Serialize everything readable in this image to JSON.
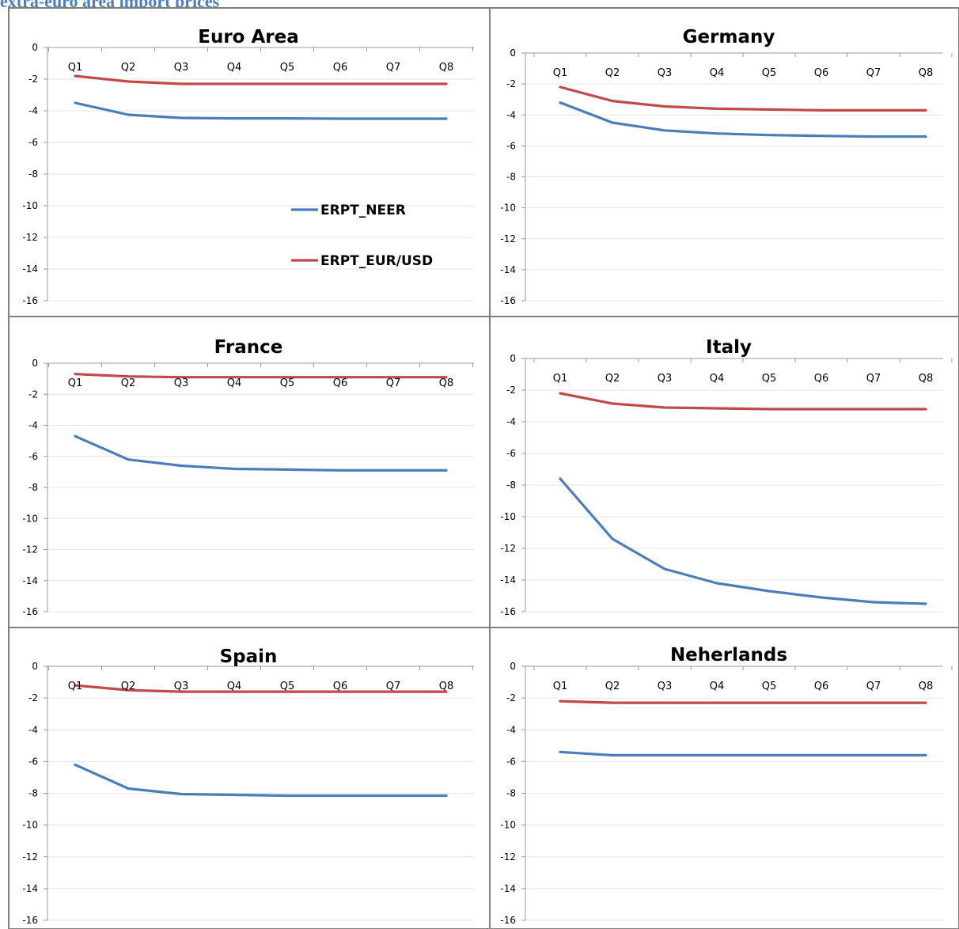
{
  "header": {
    "text": "extra-euro area import prices"
  },
  "legend": {
    "labels": [
      "ERPT_NEER",
      "ERPT_EUR/USD"
    ]
  },
  "colors": {
    "neer": "#4a7ebb",
    "eurusd": "#be4b48",
    "border": "#7f7f7f",
    "grid": "#e6e6e6",
    "axis": "#9a9a9a"
  },
  "chart_data": [
    {
      "type": "line",
      "title": "Euro Area",
      "categories": [
        "Q1",
        "Q2",
        "Q3",
        "Q4",
        "Q5",
        "Q6",
        "Q7",
        "Q8"
      ],
      "ylim": [
        -16,
        0
      ],
      "yticks": [
        "0",
        "-2",
        "-4",
        "-6",
        "-8",
        "-10",
        "-12",
        "-14",
        "-16"
      ],
      "series": [
        {
          "name": "ERPT_NEER",
          "values": [
            -3.5,
            -4.25,
            -4.45,
            -4.48,
            -4.48,
            -4.5,
            -4.5,
            -4.5
          ]
        },
        {
          "name": "ERPT_EUR/USD",
          "values": [
            -1.8,
            -2.15,
            -2.3,
            -2.3,
            -2.3,
            -2.3,
            -2.3,
            -2.3
          ]
        }
      ]
    },
    {
      "type": "line",
      "title": "Germany",
      "categories": [
        "Q1",
        "Q2",
        "Q3",
        "Q4",
        "Q5",
        "Q6",
        "Q7",
        "Q8"
      ],
      "ylim": [
        -16,
        0
      ],
      "yticks": [
        "0",
        "-2",
        "-4",
        "-6",
        "-8",
        "-10",
        "-12",
        "-14",
        "-16"
      ],
      "series": [
        {
          "name": "ERPT_NEER",
          "values": [
            -3.2,
            -4.5,
            -5.0,
            -5.2,
            -5.3,
            -5.35,
            -5.4,
            -5.4
          ]
        },
        {
          "name": "ERPT_EUR/USD",
          "values": [
            -2.2,
            -3.1,
            -3.45,
            -3.6,
            -3.65,
            -3.7,
            -3.7,
            -3.7
          ]
        }
      ]
    },
    {
      "type": "line",
      "title": "France",
      "categories": [
        "Q1",
        "Q2",
        "Q3",
        "Q4",
        "Q5",
        "Q6",
        "Q7",
        "Q8"
      ],
      "ylim": [
        -16,
        0
      ],
      "yticks": [
        "0",
        "-2",
        "-4",
        "-6",
        "-8",
        "-10",
        "-12",
        "-14",
        "-16"
      ],
      "series": [
        {
          "name": "ERPT_NEER",
          "values": [
            -4.7,
            -6.2,
            -6.6,
            -6.8,
            -6.85,
            -6.9,
            -6.9,
            -6.9
          ]
        },
        {
          "name": "ERPT_EUR/USD",
          "values": [
            -0.7,
            -0.85,
            -0.9,
            -0.9,
            -0.9,
            -0.9,
            -0.9,
            -0.9
          ]
        }
      ]
    },
    {
      "type": "line",
      "title": "Italy",
      "categories": [
        "Q1",
        "Q2",
        "Q3",
        "Q4",
        "Q5",
        "Q6",
        "Q7",
        "Q8"
      ],
      "ylim": [
        -16,
        0
      ],
      "yticks": [
        "0",
        "-2",
        "-4",
        "-6",
        "-8",
        "-10",
        "-12",
        "-14",
        "-16"
      ],
      "series": [
        {
          "name": "ERPT_NEER",
          "values": [
            -7.6,
            -11.4,
            -13.3,
            -14.2,
            -14.7,
            -15.1,
            -15.4,
            -15.5
          ]
        },
        {
          "name": "ERPT_EUR/USD",
          "values": [
            -2.2,
            -2.85,
            -3.1,
            -3.15,
            -3.2,
            -3.2,
            -3.2,
            -3.2
          ]
        }
      ]
    },
    {
      "type": "line",
      "title": "Spain",
      "categories": [
        "Q1",
        "Q2",
        "Q3",
        "Q4",
        "Q5",
        "Q6",
        "Q7",
        "Q8"
      ],
      "ylim": [
        -16,
        0
      ],
      "yticks": [
        "0",
        "-2",
        "-4",
        "-6",
        "-8",
        "-10",
        "-12",
        "-14",
        "-16"
      ],
      "series": [
        {
          "name": "ERPT_NEER",
          "values": [
            -6.2,
            -7.7,
            -8.05,
            -8.1,
            -8.15,
            -8.15,
            -8.15,
            -8.15
          ]
        },
        {
          "name": "ERPT_EUR/USD",
          "values": [
            -1.2,
            -1.5,
            -1.6,
            -1.6,
            -1.6,
            -1.6,
            -1.6,
            -1.6
          ]
        }
      ]
    },
    {
      "type": "line",
      "title": "Neherlands",
      "categories": [
        "Q1",
        "Q2",
        "Q3",
        "Q4",
        "Q5",
        "Q6",
        "Q7",
        "Q8"
      ],
      "ylim": [
        -16,
        0
      ],
      "yticks": [
        "0",
        "-2",
        "-4",
        "-6",
        "-8",
        "-10",
        "-12",
        "-14",
        "-16"
      ],
      "series": [
        {
          "name": "ERPT_NEER",
          "values": [
            -5.4,
            -5.6,
            -5.6,
            -5.6,
            -5.6,
            -5.6,
            -5.6,
            -5.6
          ]
        },
        {
          "name": "ERPT_EUR/USD",
          "values": [
            -2.2,
            -2.3,
            -2.3,
            -2.3,
            -2.3,
            -2.3,
            -2.3,
            -2.3
          ]
        }
      ]
    }
  ]
}
